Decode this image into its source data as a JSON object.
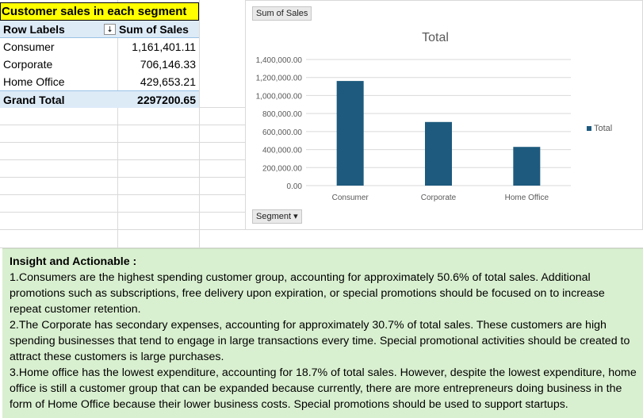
{
  "pivot": {
    "title": "Customer sales in each segment",
    "header": {
      "row_labels": "Row Labels",
      "sum_label": "Sum of Sales",
      "filter_glyph": "⇣"
    },
    "rows": [
      {
        "label": "Consumer",
        "value": "1,161,401.11"
      },
      {
        "label": "Corporate",
        "value": "706,146.33"
      },
      {
        "label": "Home Office",
        "value": "429,653.21"
      }
    ],
    "grand_total": {
      "label": "Grand Total",
      "value": "2297200.65"
    }
  },
  "chart": {
    "values_button": "Sum of Sales",
    "axis_button": "Segment ▾",
    "legend_label": "Total",
    "bar_color": "#1d5a7e"
  },
  "chart_data": {
    "type": "bar",
    "title": "Total",
    "categories": [
      "Consumer",
      "Corporate",
      "Home Office"
    ],
    "series": [
      {
        "name": "Total",
        "values": [
          1161401.11,
          706146.33,
          429653.21
        ]
      }
    ],
    "ylim": [
      0,
      1400000
    ],
    "y_ticks": [
      "0.00",
      "200,000.00",
      "400,000.00",
      "600,000.00",
      "800,000.00",
      "1,000,000.00",
      "1,200,000.00",
      "1,400,000.00"
    ],
    "xlabel": "",
    "ylabel": "",
    "grid": true,
    "legend": "right"
  },
  "insight": {
    "heading": "Insight and Actionable :",
    "points": [
      "1.Consumers are the highest spending customer group, accounting for approximately 50.6% of total sales. Additional promotions such as subscriptions, free delivery upon expiration, or special promotions should be focused on to increase repeat customer retention.",
      "2.The  Corporate has secondary expenses, accounting for approximately 30.7% of total sales. These customers are high spending businesses that tend to engage in large transactions every time. Special promotional activities should be created to attract these customers is large purchases.",
      "3.Home office has the lowest expenditure, accounting for 18.7% of total sales. However, despite the lowest expenditure, home office is still a customer group that can be expanded because currently, there are more entrepreneurs doing business in the form of Home Office because their lower business costs. Special promotions should be used to support startups."
    ]
  }
}
